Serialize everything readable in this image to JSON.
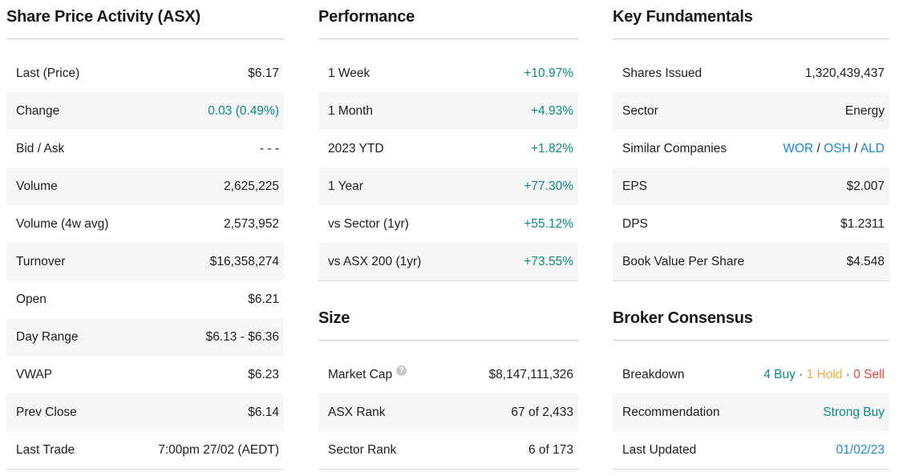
{
  "palette": {
    "teal": "#088c82",
    "blue": "#1b86de",
    "orange": "#f0ae3a",
    "red": "#e9453b",
    "separator": "#444444",
    "dark_text": "#202020",
    "stripe": "#f6f6f6"
  },
  "columns": [
    {
      "name": "share-price-activity",
      "sections": [
        {
          "title": "Share Price Activity (ASX)",
          "rows": [
            {
              "label": "Last (Price)",
              "value": "$6.17"
            },
            {
              "label": "Change",
              "value": "0.03 (0.49%)",
              "color": "teal"
            },
            {
              "label": "Bid / Ask",
              "value": "- - -"
            },
            {
              "label": "Volume",
              "value": "2,625,225"
            },
            {
              "label": "Volume (4w avg)",
              "value": "2,573,952"
            },
            {
              "label": "Turnover",
              "value": "$16,358,274"
            },
            {
              "label": "Open",
              "value": "$6.21"
            },
            {
              "label": "Day Range",
              "value": "$6.13 - $6.36"
            },
            {
              "label": "VWAP",
              "value": "$6.23"
            },
            {
              "label": "Prev Close",
              "value": "$6.14"
            },
            {
              "label": "Last Trade",
              "value": "7:00pm 27/02 (AEDT)"
            }
          ]
        }
      ]
    },
    {
      "name": "performance-and-size",
      "sections": [
        {
          "title": "Performance",
          "rows": [
            {
              "label": "1 Week",
              "value": "+10.97%",
              "color": "teal"
            },
            {
              "label": "1 Month",
              "value": "+4.93%",
              "color": "teal"
            },
            {
              "label": "2023 YTD",
              "value": "+1.82%",
              "color": "teal"
            },
            {
              "label": "1 Year",
              "value": "+77.30%",
              "color": "teal"
            },
            {
              "label": "vs Sector (1yr)",
              "value": "+55.12%",
              "color": "teal"
            },
            {
              "label": "vs ASX 200 (1yr)",
              "value": "+73.55%",
              "color": "teal"
            }
          ]
        },
        {
          "title": "Size",
          "rows": [
            {
              "label": "Market Cap",
              "value": "$8,147,111,326",
              "help_icon": {
                "name": "question-mark-icon",
                "glyph": "?"
              }
            },
            {
              "label": "ASX Rank",
              "value": "67 of 2,433"
            },
            {
              "label": "Sector Rank",
              "value": "6 of 173"
            }
          ]
        }
      ]
    },
    {
      "name": "fundamentals-and-consensus",
      "sections": [
        {
          "title": "Key Fundamentals",
          "rows": [
            {
              "label": "Shares Issued",
              "value": "1,320,439,437"
            },
            {
              "label": "Sector",
              "value": "Energy"
            },
            {
              "label": "Similar Companies",
              "parts": [
                {
                  "text": "WOR",
                  "color": "blue",
                  "link": true
                },
                {
                  "text": " / "
                },
                {
                  "text": "OSH",
                  "color": "blue",
                  "link": true
                },
                {
                  "text": " / "
                },
                {
                  "text": "ALD",
                  "color": "blue",
                  "link": true
                }
              ]
            },
            {
              "label": "EPS",
              "value": "$2.007"
            },
            {
              "label": "DPS",
              "value": "$1.2311"
            },
            {
              "label": "Book Value Per Share",
              "value": "$4.548"
            }
          ]
        },
        {
          "title": "Broker Consensus",
          "rows": [
            {
              "label": "Breakdown",
              "parts": [
                {
                  "text": "4 Buy",
                  "color": "teal"
                },
                {
                  "text": " · ",
                  "color": "separator"
                },
                {
                  "text": "1 Hold",
                  "color": "orange"
                },
                {
                  "text": " · ",
                  "color": "separator"
                },
                {
                  "text": "0 Sell",
                  "color": "red"
                }
              ]
            },
            {
              "label": "Recommendation",
              "value": "Strong Buy",
              "color": "teal"
            },
            {
              "label": "Last Updated",
              "value": "01/02/23",
              "color": "blue",
              "link": true
            }
          ]
        }
      ]
    }
  ]
}
